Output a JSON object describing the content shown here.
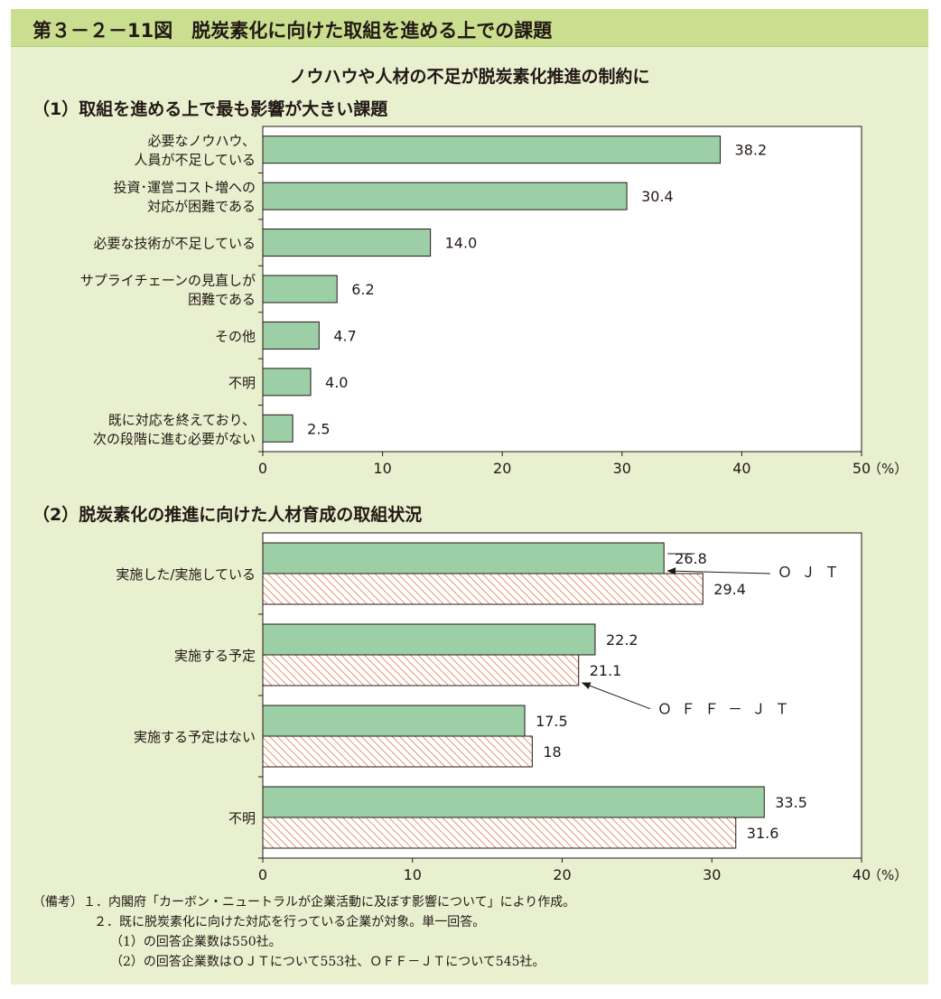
{
  "figure_title": "第３－２－11図　脱炭素化に向けた取組を進める上での課題",
  "subtitle": "ノウハウや人材の不足が脱炭素化推進の制約に",
  "colors": {
    "panel": "#e8f0cf",
    "title_band": "#c9df8f",
    "bar_fill": "#9dcfa6",
    "hatch": "#e07a4e",
    "axis": "#231815"
  },
  "chart_data": [
    {
      "type": "bar",
      "orientation": "horizontal",
      "title": "（1）取組を進める上で最も影響が大きい課題",
      "categories": [
        [
          "必要なノウハウ、",
          "人員が不足している"
        ],
        [
          "投資･運営コスト増への",
          "対応が困難である"
        ],
        [
          "必要な技術が不足している"
        ],
        [
          "サプライチェーンの見直しが",
          "困難である"
        ],
        [
          "その他"
        ],
        [
          "不明"
        ],
        [
          "既に対応を終えており、",
          "次の段階に進む必要がない"
        ]
      ],
      "values": [
        38.2,
        30.4,
        14.0,
        6.2,
        4.7,
        4.0,
        2.5
      ],
      "value_labels": [
        "38.2",
        "30.4",
        "14.0",
        "6.2",
        "4.7",
        "4.0",
        "2.5"
      ],
      "xlim": [
        0,
        50
      ],
      "ticks": [
        "0",
        "10",
        "20",
        "30",
        "40",
        "50"
      ],
      "unit": "（%）",
      "grid": false
    },
    {
      "type": "bar",
      "orientation": "horizontal",
      "title": "（2）脱炭素化の推進に向けた人材育成の取組状況",
      "categories": [
        "実施した/実施している",
        "実施する予定",
        "実施する予定はない",
        "不明"
      ],
      "series": [
        {
          "name": "ＯＪＴ",
          "style": "solid",
          "values": [
            26.8,
            22.2,
            17.5,
            33.5
          ],
          "value_labels": [
            "26.8",
            "22.2",
            "17.5",
            "33.5"
          ]
        },
        {
          "name": "ＯＦＦ－ＪＴ",
          "style": "hatched",
          "values": [
            29.4,
            21.1,
            18,
            31.6
          ],
          "value_labels": [
            "29.4",
            "21.1",
            "18",
            "31.6"
          ]
        }
      ],
      "xlim": [
        0,
        40
      ],
      "ticks": [
        "0",
        "10",
        "20",
        "30",
        "40"
      ],
      "unit": "（%）",
      "grid": false,
      "legend": "inline callouts"
    }
  ],
  "notes": [
    "（備考）１．内閣府「カーボン・ニュートラルが企業活動に及ぼす影響について」により作成。",
    "２．既に脱炭素化に向けた対応を行っている企業が対象。単一回答。",
    "（1）の回答企業数は550社。",
    "（2）の回答企業数はＯＪＴについて553社、ＯＦＦ－ＪＴについて545社。"
  ]
}
